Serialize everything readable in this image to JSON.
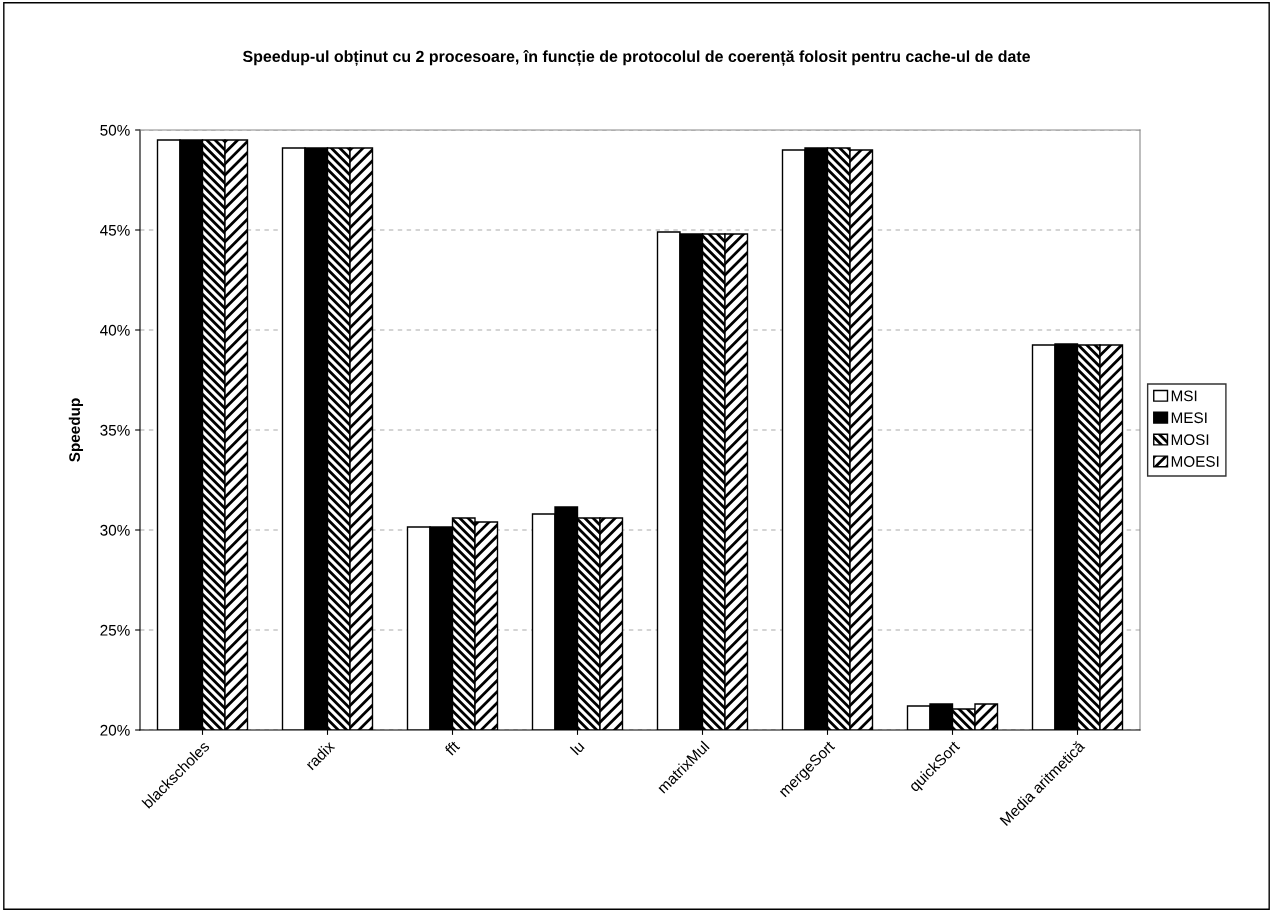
{
  "chart_data": {
    "type": "bar",
    "title": "Speedup-ul obținut cu 2 procesoare, în funcție de protocolul de coerență folosit pentru cache-ul de date",
    "ylabel": "Speedup",
    "categories": [
      "blackscholes",
      "radix",
      "fft",
      "lu",
      "matrixMul",
      "mergeSort",
      "quickSort",
      "Media aritmetică"
    ],
    "series": [
      {
        "name": "MSI",
        "color": "#ffffff",
        "values": [
          49.5,
          49.1,
          30.15,
          30.8,
          44.9,
          49.0,
          21.2,
          39.25
        ]
      },
      {
        "name": "MESI",
        "color": "#000000",
        "values": [
          49.5,
          49.1,
          30.15,
          31.15,
          44.8,
          49.1,
          21.3,
          39.3
        ]
      },
      {
        "name": "MOSI",
        "color": "#000000",
        "values": [
          49.5,
          49.1,
          30.6,
          30.6,
          44.8,
          49.1,
          21.05,
          39.25
        ]
      },
      {
        "name": "MOESI",
        "color": "#000000",
        "values": [
          49.5,
          49.1,
          30.4,
          30.6,
          44.8,
          49.0,
          21.3,
          39.25
        ]
      }
    ],
    "ylim": [
      20,
      50
    ],
    "yticks": [
      {
        "value": 20,
        "label": "20%"
      },
      {
        "value": 25,
        "label": "25%"
      },
      {
        "value": 30,
        "label": "30%"
      },
      {
        "value": 35,
        "label": "35%"
      },
      {
        "value": 40,
        "label": "40%"
      },
      {
        "value": 45,
        "label": "45%"
      },
      {
        "value": 50,
        "label": "50%"
      }
    ],
    "grid": "y",
    "legend": "right"
  }
}
